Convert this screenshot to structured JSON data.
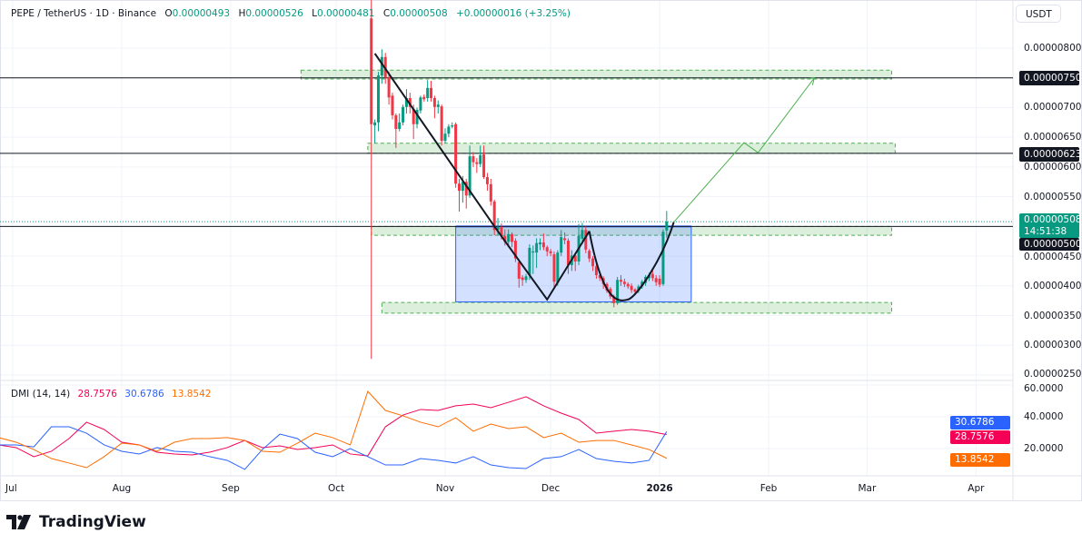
{
  "header": {
    "symbol": "PEPE / TetherUS · 1D · Binance",
    "o_label": "O",
    "o": "0.00000493",
    "h_label": "H",
    "h": "0.00000526",
    "l_label": "L",
    "l": "0.00000481",
    "c_label": "C",
    "c": "0.00000508",
    "change": "+0.00000016 (+3.25%)"
  },
  "currency": "USDT",
  "colors": {
    "up": "#089981",
    "down": "#F23645",
    "adx": "#F50057",
    "plus_di": "#2962FF",
    "minus_di": "#FF6D00",
    "zone": "#4caf50",
    "box": "#2962FF"
  },
  "price_axis": {
    "ticks": [
      "0.00000800",
      "0.00000700",
      "0.00000650",
      "0.00000600",
      "0.00000550",
      "0.00000450",
      "0.00000400",
      "0.00000350",
      "0.00000300",
      "0.00000250"
    ],
    "level_labels": [
      "0.00000750",
      "0.00000623",
      "0.00000500"
    ],
    "current_price": "0.00000508",
    "countdown": "14:51:38"
  },
  "time_axis": [
    {
      "label": "Jul",
      "date": "2025-07-01"
    },
    {
      "label": "Aug",
      "date": "2025-08-01"
    },
    {
      "label": "Sep",
      "date": "2025-09-01"
    },
    {
      "label": "Oct",
      "date": "2025-10-01"
    },
    {
      "label": "Nov",
      "date": "2025-11-01"
    },
    {
      "label": "Dec",
      "date": "2025-12-01"
    },
    {
      "label": "2026",
      "date": "2026-01-01"
    },
    {
      "label": "Feb",
      "date": "2026-02-01"
    },
    {
      "label": "Mar",
      "date": "2026-03-01"
    },
    {
      "label": "Apr",
      "date": "2026-04-01"
    }
  ],
  "chart_data": [
    {
      "type": "candlestick",
      "title": "PEPE / TetherUS · 1D · Binance",
      "ylim": [
        2.3e-06,
        8.8e-06
      ],
      "columns": [
        "date",
        "open",
        "high",
        "low",
        "close"
      ],
      "candles": [
        [
          "2025-10-11",
          8.5e-06,
          9e-06,
          2.77e-06,
          6.72e-06
        ],
        [
          "2025-10-12",
          6.7e-06,
          6.8e-06,
          6.4e-06,
          6.75e-06
        ],
        [
          "2025-10-13",
          6.75e-06,
          7.6e-06,
          6.6e-06,
          7.54e-06
        ],
        [
          "2025-10-14",
          7.54e-06,
          7.98e-06,
          7.4e-06,
          7.85e-06
        ],
        [
          "2025-10-15",
          7.85e-06,
          7.92e-06,
          7.4e-06,
          7.51e-06
        ],
        [
          "2025-10-16",
          7.51e-06,
          7.6e-06,
          7.05e-06,
          7.17e-06
        ],
        [
          "2025-10-17",
          7.2e-06,
          7.25e-06,
          6.8e-06,
          6.87e-06
        ],
        [
          "2025-10-18",
          6.87e-06,
          6.9e-06,
          6.32e-06,
          6.64e-06
        ],
        [
          "2025-10-19",
          6.64e-06,
          6.9e-06,
          6.6e-06,
          6.75e-06
        ],
        [
          "2025-10-20",
          6.75e-06,
          7.05e-06,
          6.7e-06,
          7.01e-06
        ],
        [
          "2025-10-21",
          7.01e-06,
          7.31e-06,
          6.9e-06,
          7.16e-06
        ],
        [
          "2025-10-22",
          7.16e-06,
          7.25e-06,
          6.9e-06,
          7.01e-06
        ],
        [
          "2025-10-23",
          6.98e-06,
          7.05e-06,
          6.47e-06,
          6.72e-06
        ],
        [
          "2025-10-24",
          6.72e-06,
          7e-06,
          6.65e-06,
          6.96e-06
        ],
        [
          "2025-10-25",
          6.95e-06,
          7.2e-06,
          6.9e-06,
          7.17e-06
        ],
        [
          "2025-10-26",
          7.18e-06,
          7.22e-06,
          7.1e-06,
          7.14e-06
        ],
        [
          "2025-10-27",
          7.16e-06,
          7.46e-06,
          7.1e-06,
          7.33e-06
        ],
        [
          "2025-10-28",
          7.33e-06,
          7.45e-06,
          7.1e-06,
          7.16e-06
        ],
        [
          "2025-10-29",
          7.16e-06,
          7.2e-06,
          6.82e-06,
          7.01e-06
        ],
        [
          "2025-10-30",
          7.01e-06,
          7.12e-06,
          6.9e-06,
          7.05e-06
        ],
        [
          "2025-10-31",
          7.02e-06,
          7.05e-06,
          6.36e-06,
          6.44e-06
        ],
        [
          "2025-11-01",
          6.44e-06,
          6.65e-06,
          6.4e-06,
          6.56e-06
        ],
        [
          "2025-11-02",
          6.56e-06,
          6.72e-06,
          6.5e-06,
          6.68e-06
        ],
        [
          "2025-11-03",
          6.68e-06,
          6.75e-06,
          6.65e-06,
          6.7e-06
        ],
        [
          "2025-11-04",
          6.72e-06,
          6.75e-06,
          5.65e-06,
          5.72e-06
        ],
        [
          "2025-11-05",
          5.72e-06,
          5.8e-06,
          5.25e-06,
          5.6e-06
        ],
        [
          "2025-11-06",
          5.6e-06,
          5.85e-06,
          5.4e-06,
          5.75e-06
        ],
        [
          "2025-11-07",
          5.75e-06,
          5.8e-06,
          5.3e-06,
          5.52e-06
        ],
        [
          "2025-11-08",
          5.52e-06,
          6.36e-06,
          5.48e-06,
          6.18e-06
        ],
        [
          "2025-11-09",
          6.18e-06,
          6.25e-06,
          6e-06,
          6.08e-06
        ],
        [
          "2025-11-10",
          6.08e-06,
          6.15e-06,
          5.9e-06,
          6.05e-06
        ],
        [
          "2025-11-11",
          6.05e-06,
          6.36e-06,
          6e-06,
          6.2e-06
        ],
        [
          "2025-11-12",
          6.21e-06,
          6.36e-06,
          5.8e-06,
          5.83e-06
        ],
        [
          "2025-11-13",
          5.83e-06,
          5.9e-06,
          5.6e-06,
          5.71e-06
        ],
        [
          "2025-11-14",
          5.71e-06,
          5.8e-06,
          5.35e-06,
          5.42e-06
        ],
        [
          "2025-11-15",
          5.42e-06,
          5.45e-06,
          4.85e-06,
          4.94e-06
        ],
        [
          "2025-11-16",
          4.94e-06,
          5.14e-06,
          4.85e-06,
          4.99e-06
        ],
        [
          "2025-11-17",
          4.99e-06,
          5.05e-06,
          4.78e-06,
          4.84e-06
        ],
        [
          "2025-11-18",
          4.84e-06,
          4.95e-06,
          4.68e-06,
          4.74e-06
        ],
        [
          "2025-11-19",
          4.74e-06,
          4.95e-06,
          4.65e-06,
          4.87e-06
        ],
        [
          "2025-11-20",
          4.87e-06,
          4.9e-06,
          4.65e-06,
          4.74e-06
        ],
        [
          "2025-11-21",
          4.76e-06,
          4.8e-06,
          4.4e-06,
          4.46e-06
        ],
        [
          "2025-11-22",
          4.4e-06,
          4.45e-06,
          3.97e-06,
          4.12e-06
        ],
        [
          "2025-11-23",
          4.14e-06,
          4.18e-06,
          4e-06,
          4.1e-06
        ],
        [
          "2025-11-24",
          4.1e-06,
          4.2e-06,
          4.05e-06,
          4.16e-06
        ],
        [
          "2025-11-25",
          4.18e-06,
          4.7e-06,
          4.1e-06,
          4.64e-06
        ],
        [
          "2025-11-26",
          4.56e-06,
          4.68e-06,
          4.2e-06,
          4.58e-06
        ],
        [
          "2025-11-27",
          4.56e-06,
          4.8e-06,
          4.3e-06,
          4.72e-06
        ],
        [
          "2025-11-28",
          4.7e-06,
          4.8e-06,
          4.6e-06,
          4.73e-06
        ],
        [
          "2025-11-29",
          4.73e-06,
          4.88e-06,
          4.6e-06,
          4.65e-06
        ],
        [
          "2025-11-30",
          4.65e-06,
          4.68e-06,
          4.5e-06,
          4.58e-06
        ],
        [
          "2025-12-01",
          4.58e-06,
          4.62e-06,
          4.5e-06,
          4.55e-06
        ],
        [
          "2025-12-02",
          4.53e-06,
          4.58e-06,
          3.97e-06,
          4.07e-06
        ],
        [
          "2025-12-03",
          4.05e-06,
          4.6e-06,
          4e-06,
          4.56e-06
        ],
        [
          "2025-12-04",
          4.56e-06,
          4.94e-06,
          4.5e-06,
          4.82e-06
        ],
        [
          "2025-12-05",
          4.8e-06,
          4.9e-06,
          4.7e-06,
          4.77e-06
        ],
        [
          "2025-12-06",
          4.76e-06,
          4.8e-06,
          4.2e-06,
          4.35e-06
        ],
        [
          "2025-12-07",
          4.35e-06,
          4.6e-06,
          4.25e-06,
          4.51e-06
        ],
        [
          "2025-12-08",
          4.51e-06,
          4.55e-06,
          4.25e-06,
          4.41e-06
        ],
        [
          "2025-12-09",
          4.41e-06,
          5.04e-06,
          4.35e-06,
          4.84e-06
        ],
        [
          "2025-12-10",
          4.79e-06,
          5.06e-06,
          4.7e-06,
          4.94e-06
        ],
        [
          "2025-12-11",
          4.94e-06,
          5e-06,
          4.55e-06,
          4.61e-06
        ],
        [
          "2025-12-12",
          4.59e-06,
          4.62e-06,
          4.4e-06,
          4.46e-06
        ],
        [
          "2025-12-13",
          4.46e-06,
          4.5e-06,
          4.25e-06,
          4.33e-06
        ],
        [
          "2025-12-14",
          4.33e-06,
          4.38e-06,
          4.12e-06,
          4.18e-06
        ],
        [
          "2025-12-15",
          4.18e-06,
          4.2e-06,
          4.08e-06,
          4.13e-06
        ],
        [
          "2025-12-16",
          4.13e-06,
          4.16e-06,
          3.95e-06,
          4.03e-06
        ],
        [
          "2025-12-17",
          4.03e-06,
          4.06e-06,
          3.88e-06,
          3.92e-06
        ],
        [
          "2025-12-18",
          3.95e-06,
          3.98e-06,
          3.78e-06,
          3.82e-06
        ],
        [
          "2025-12-19",
          3.82e-06,
          3.85e-06,
          3.64e-06,
          3.71e-06
        ],
        [
          "2025-12-20",
          3.71e-06,
          4.15e-06,
          3.68e-06,
          4.1e-06
        ],
        [
          "2025-12-21",
          4.1e-06,
          4.18e-06,
          4e-06,
          4.07e-06
        ],
        [
          "2025-12-22",
          4.07e-06,
          4.12e-06,
          3.98e-06,
          4.03e-06
        ],
        [
          "2025-12-23",
          4.03e-06,
          4.06e-06,
          3.95e-06,
          3.99e-06
        ],
        [
          "2025-12-24",
          4e-06,
          4.04e-06,
          3.88e-06,
          3.93e-06
        ],
        [
          "2025-12-25",
          3.94e-06,
          3.96e-06,
          3.85e-06,
          3.9e-06
        ],
        [
          "2025-12-26",
          3.92e-06,
          4.02e-06,
          3.88e-06,
          3.99e-06
        ],
        [
          "2025-12-27",
          3.99e-06,
          4.1e-06,
          3.95e-06,
          4.07e-06
        ],
        [
          "2025-12-28",
          4.05e-06,
          4.18e-06,
          4e-06,
          4.15e-06
        ],
        [
          "2025-12-29",
          4.13e-06,
          4.22e-06,
          4.08e-06,
          4.18e-06
        ],
        [
          "2025-12-30",
          4.2e-06,
          4.3e-06,
          4.08e-06,
          4.13e-06
        ],
        [
          "2025-12-31",
          4.13e-06,
          4.18e-06,
          4e-06,
          4.06e-06
        ],
        [
          "2026-01-01",
          4.12e-06,
          4.18e-06,
          3.98e-06,
          4.02e-06
        ],
        [
          "2026-01-02",
          4.03e-06,
          4.95e-06,
          4e-06,
          4.91e-06
        ],
        [
          "2026-01-03",
          4.93e-06,
          5.26e-06,
          4.81e-06,
          5.08e-06
        ]
      ],
      "drawings": {
        "levels": [
          7.5e-06,
          6.23e-06,
          5e-06
        ],
        "zones": [
          {
            "from": "2025-09-21",
            "to": "2026-03-08",
            "top": 7.63e-06,
            "bottom": 7.48e-06
          },
          {
            "from": "2025-10-10",
            "to": "2026-03-09",
            "top": 6.4e-06,
            "bottom": 6.23e-06
          },
          {
            "from": "2025-10-11",
            "to": "2026-03-08",
            "top": 5e-06,
            "bottom": 4.85e-06
          },
          {
            "from": "2025-10-14",
            "to": "2026-03-08",
            "top": 3.72e-06,
            "bottom": 3.54e-06
          }
        ],
        "range_box": {
          "from": "2025-11-04",
          "to": "2026-01-10",
          "top": 5e-06,
          "bottom": 3.73e-06
        },
        "pattern_path": [
          [
            "2025-10-12",
            7.91e-06
          ],
          [
            "2025-11-15",
            5e-06
          ],
          [
            "2025-11-30",
            3.77e-06
          ],
          [
            "2025-12-12",
            4.92e-06
          ]
        ],
        "cup_curve": [
          [
            "2025-12-12",
            4.92e-06
          ],
          [
            "2025-12-23",
            3.77e-06
          ],
          [
            "2026-01-05",
            5.07e-06
          ]
        ],
        "projection_arrow": [
          [
            "2026-01-05",
            5.07e-06
          ],
          [
            "2026-01-25",
            6.41e-06
          ],
          [
            "2026-01-29",
            6.24e-06
          ],
          [
            "2026-02-14",
            7.5e-06
          ]
        ]
      }
    },
    {
      "type": "line",
      "title": "DMI (14, 14)",
      "ylim": [
        0,
        62
      ],
      "ticks": [
        "60.0000",
        "40.0000",
        "20.0000"
      ],
      "x": [
        "2025-06-27",
        "2025-07-02",
        "2025-07-07",
        "2025-07-12",
        "2025-07-17",
        "2025-07-22",
        "2025-07-27",
        "2025-08-01",
        "2025-08-06",
        "2025-08-11",
        "2025-08-16",
        "2025-08-21",
        "2025-08-26",
        "2025-08-31",
        "2025-09-05",
        "2025-09-10",
        "2025-09-15",
        "2025-09-20",
        "2025-09-25",
        "2025-09-30",
        "2025-10-05",
        "2025-10-10",
        "2025-10-15",
        "2025-10-20",
        "2025-10-25",
        "2025-10-30",
        "2025-11-04",
        "2025-11-09",
        "2025-11-14",
        "2025-11-19",
        "2025-11-24",
        "2025-11-29",
        "2025-12-04",
        "2025-12-09",
        "2025-12-14",
        "2025-12-19",
        "2025-12-24",
        "2025-12-29",
        "2026-01-03"
      ],
      "series": [
        {
          "name": "28.7576",
          "color": "#F50057",
          "values": [
            22.3,
            20.6,
            14.9,
            18.3,
            26.3,
            36.6,
            32,
            24,
            22.3,
            17.7,
            16.6,
            16,
            17.7,
            20.6,
            25.1,
            20.6,
            21.7,
            19.4,
            20.6,
            22.3,
            16.6,
            15.4,
            33.7,
            41.1,
            44.6,
            44,
            46.9,
            48,
            45.7,
            49.1,
            52.6,
            46.9,
            42.3,
            38.3,
            29.7,
            30.9,
            32,
            30.9,
            28.7576
          ]
        },
        {
          "name": "30.6786",
          "color": "#2962FF",
          "values": [
            22.3,
            22.3,
            21.1,
            33.7,
            33.7,
            29.7,
            22.3,
            18.3,
            16.6,
            20.6,
            18.3,
            17.7,
            14.9,
            12.6,
            6.9,
            19.4,
            29.1,
            26.3,
            17.7,
            14.9,
            20,
            14.9,
            9.7,
            9.7,
            13.7,
            12.6,
            10.9,
            14.9,
            9.7,
            8,
            7.4,
            13.7,
            14.9,
            19.4,
            13.7,
            12,
            10.9,
            12.6,
            30.6786
          ]
        },
        {
          "name": "13.8542",
          "color": "#FF6D00",
          "values": [
            26.9,
            24,
            19.4,
            13.7,
            10.9,
            8,
            14.9,
            23.4,
            22.3,
            18.3,
            24,
            26.3,
            26.3,
            26.9,
            25.1,
            18.3,
            17.7,
            23.4,
            29.7,
            26.9,
            22.3,
            56,
            44,
            40.6,
            36.6,
            33.7,
            39.4,
            30.9,
            35.4,
            32.6,
            33.7,
            26.9,
            29.7,
            24,
            25.1,
            25.1,
            22.3,
            19.4,
            13.8542
          ]
        }
      ]
    }
  ],
  "dmi_legend": {
    "label": "DMI (14, 14)",
    "adx": "28.7576",
    "plus_di": "30.6786",
    "minus_di": "13.8542"
  },
  "brand": "TradingView"
}
